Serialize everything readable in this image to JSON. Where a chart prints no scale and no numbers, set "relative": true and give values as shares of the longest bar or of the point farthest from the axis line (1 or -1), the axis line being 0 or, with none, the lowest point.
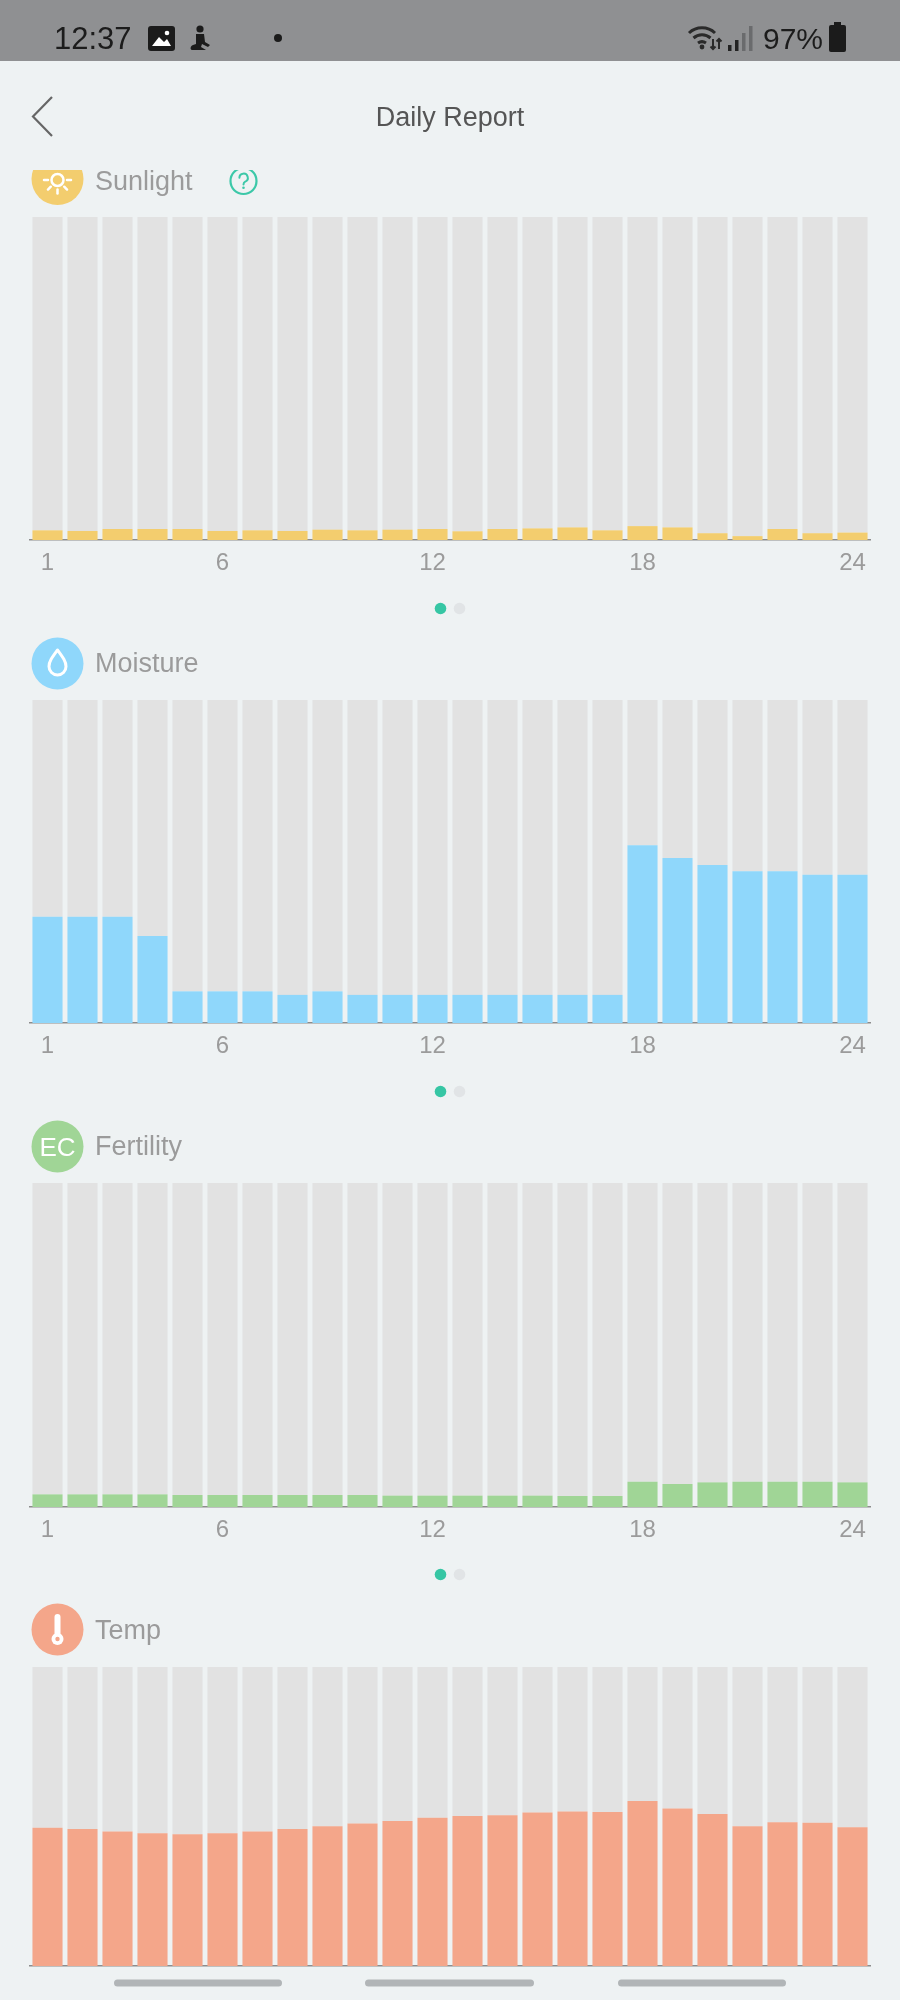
{
  "chart_data": [
    {
      "type": "bar",
      "title": "Sunlight",
      "annotations": [
        "12:37",
        "97%",
        "Daily Report"
      ],
      "relative": true,
      "stacked": true,
      "categories": [
        "1",
        null,
        null,
        null,
        null,
        "6",
        null,
        null,
        null,
        null,
        null,
        "12",
        null,
        null,
        null,
        null,
        null,
        "18",
        null,
        null,
        null,
        null,
        null,
        "24"
      ],
      "series": [
        {
          "color": "#f3cd6e",
          "values": [
            0.03,
            0.028,
            0.034,
            0.034,
            0.034,
            0.028,
            0.03,
            0.028,
            0.032,
            0.03,
            0.032,
            0.034,
            0.027,
            0.034,
            0.036,
            0.039,
            0.03,
            0.043,
            0.039,
            0.021,
            0.012,
            0.034,
            0.021,
            0.023
          ]
        },
        {
          "color": "#e2e2e2",
          "values": [
            0.97,
            0.972,
            0.966,
            0.966,
            0.966,
            0.972,
            0.97,
            0.972,
            0.968,
            0.97,
            0.968,
            0.966,
            0.973,
            0.966,
            0.964,
            0.961,
            0.97,
            0.957,
            0.961,
            0.979,
            0.988,
            0.966,
            0.979,
            0.977
          ]
        }
      ]
    },
    {
      "type": "bar",
      "title": "Moisture",
      "relative": true,
      "stacked": true,
      "categories": [
        "1",
        null,
        null,
        null,
        null,
        "6",
        null,
        null,
        null,
        null,
        null,
        "12",
        null,
        null,
        null,
        null,
        null,
        "18",
        null,
        null,
        null,
        null,
        null,
        "24"
      ],
      "series": [
        {
          "color": "#8fd7fb",
          "values": [
            0.329,
            0.329,
            0.329,
            0.269,
            0.098,
            0.098,
            0.098,
            0.087,
            0.098,
            0.087,
            0.087,
            0.087,
            0.087,
            0.087,
            0.087,
            0.087,
            0.087,
            0.55,
            0.511,
            0.489,
            0.47,
            0.47,
            0.459,
            0.459
          ]
        },
        {
          "color": "#e2e2e2",
          "values": [
            0.671,
            0.671,
            0.671,
            0.731,
            0.902,
            0.902,
            0.902,
            0.913,
            0.902,
            0.913,
            0.913,
            0.913,
            0.913,
            0.913,
            0.913,
            0.913,
            0.913,
            0.45,
            0.489,
            0.511,
            0.53,
            0.53,
            0.541,
            0.541
          ]
        }
      ]
    },
    {
      "type": "bar",
      "title": "Fertility",
      "annotations": [
        "EC"
      ],
      "relative": true,
      "stacked": true,
      "categories": [
        "1",
        null,
        null,
        null,
        null,
        "6",
        null,
        null,
        null,
        null,
        null,
        "12",
        null,
        null,
        null,
        null,
        null,
        "18",
        null,
        null,
        null,
        null,
        null,
        "24"
      ],
      "series": [
        {
          "color": "#a0d596",
          "values": [
            0.039,
            0.039,
            0.039,
            0.039,
            0.037,
            0.037,
            0.037,
            0.037,
            0.037,
            0.037,
            0.035,
            0.035,
            0.035,
            0.035,
            0.035,
            0.034,
            0.034,
            0.078,
            0.071,
            0.076,
            0.078,
            0.078,
            0.078,
            0.076
          ]
        },
        {
          "color": "#e2e2e2",
          "values": [
            0.961,
            0.961,
            0.961,
            0.961,
            0.963,
            0.963,
            0.963,
            0.963,
            0.963,
            0.963,
            0.965,
            0.965,
            0.965,
            0.965,
            0.965,
            0.966,
            0.966,
            0.922,
            0.929,
            0.924,
            0.922,
            0.922,
            0.922,
            0.924
          ]
        }
      ]
    },
    {
      "type": "bar",
      "title": "Temp",
      "relative": true,
      "stacked": true,
      "categories": [
        null,
        null,
        null,
        null,
        null,
        null,
        null,
        null,
        null,
        null,
        null,
        null,
        null,
        null,
        null,
        null,
        null,
        null,
        null,
        null,
        null,
        null,
        null,
        null
      ],
      "series": [
        {
          "color": "#f4a68a",
          "values": [
            0.462,
            0.458,
            0.45,
            0.444,
            0.441,
            0.444,
            0.45,
            0.458,
            0.467,
            0.477,
            0.485,
            0.496,
            0.502,
            0.504,
            0.513,
            0.517,
            0.515,
            0.552,
            0.527,
            0.508,
            0.467,
            0.481,
            0.479,
            0.464
          ]
        },
        {
          "color": "#e2e2e2",
          "values": [
            0.538,
            0.542,
            0.55,
            0.556,
            0.559,
            0.556,
            0.55,
            0.542,
            0.533,
            0.523,
            0.515,
            0.504,
            0.498,
            0.496,
            0.487,
            0.483,
            0.485,
            0.448,
            0.473,
            0.492,
            0.533,
            0.519,
            0.521,
            0.536
          ]
        }
      ]
    }
  ]
}
